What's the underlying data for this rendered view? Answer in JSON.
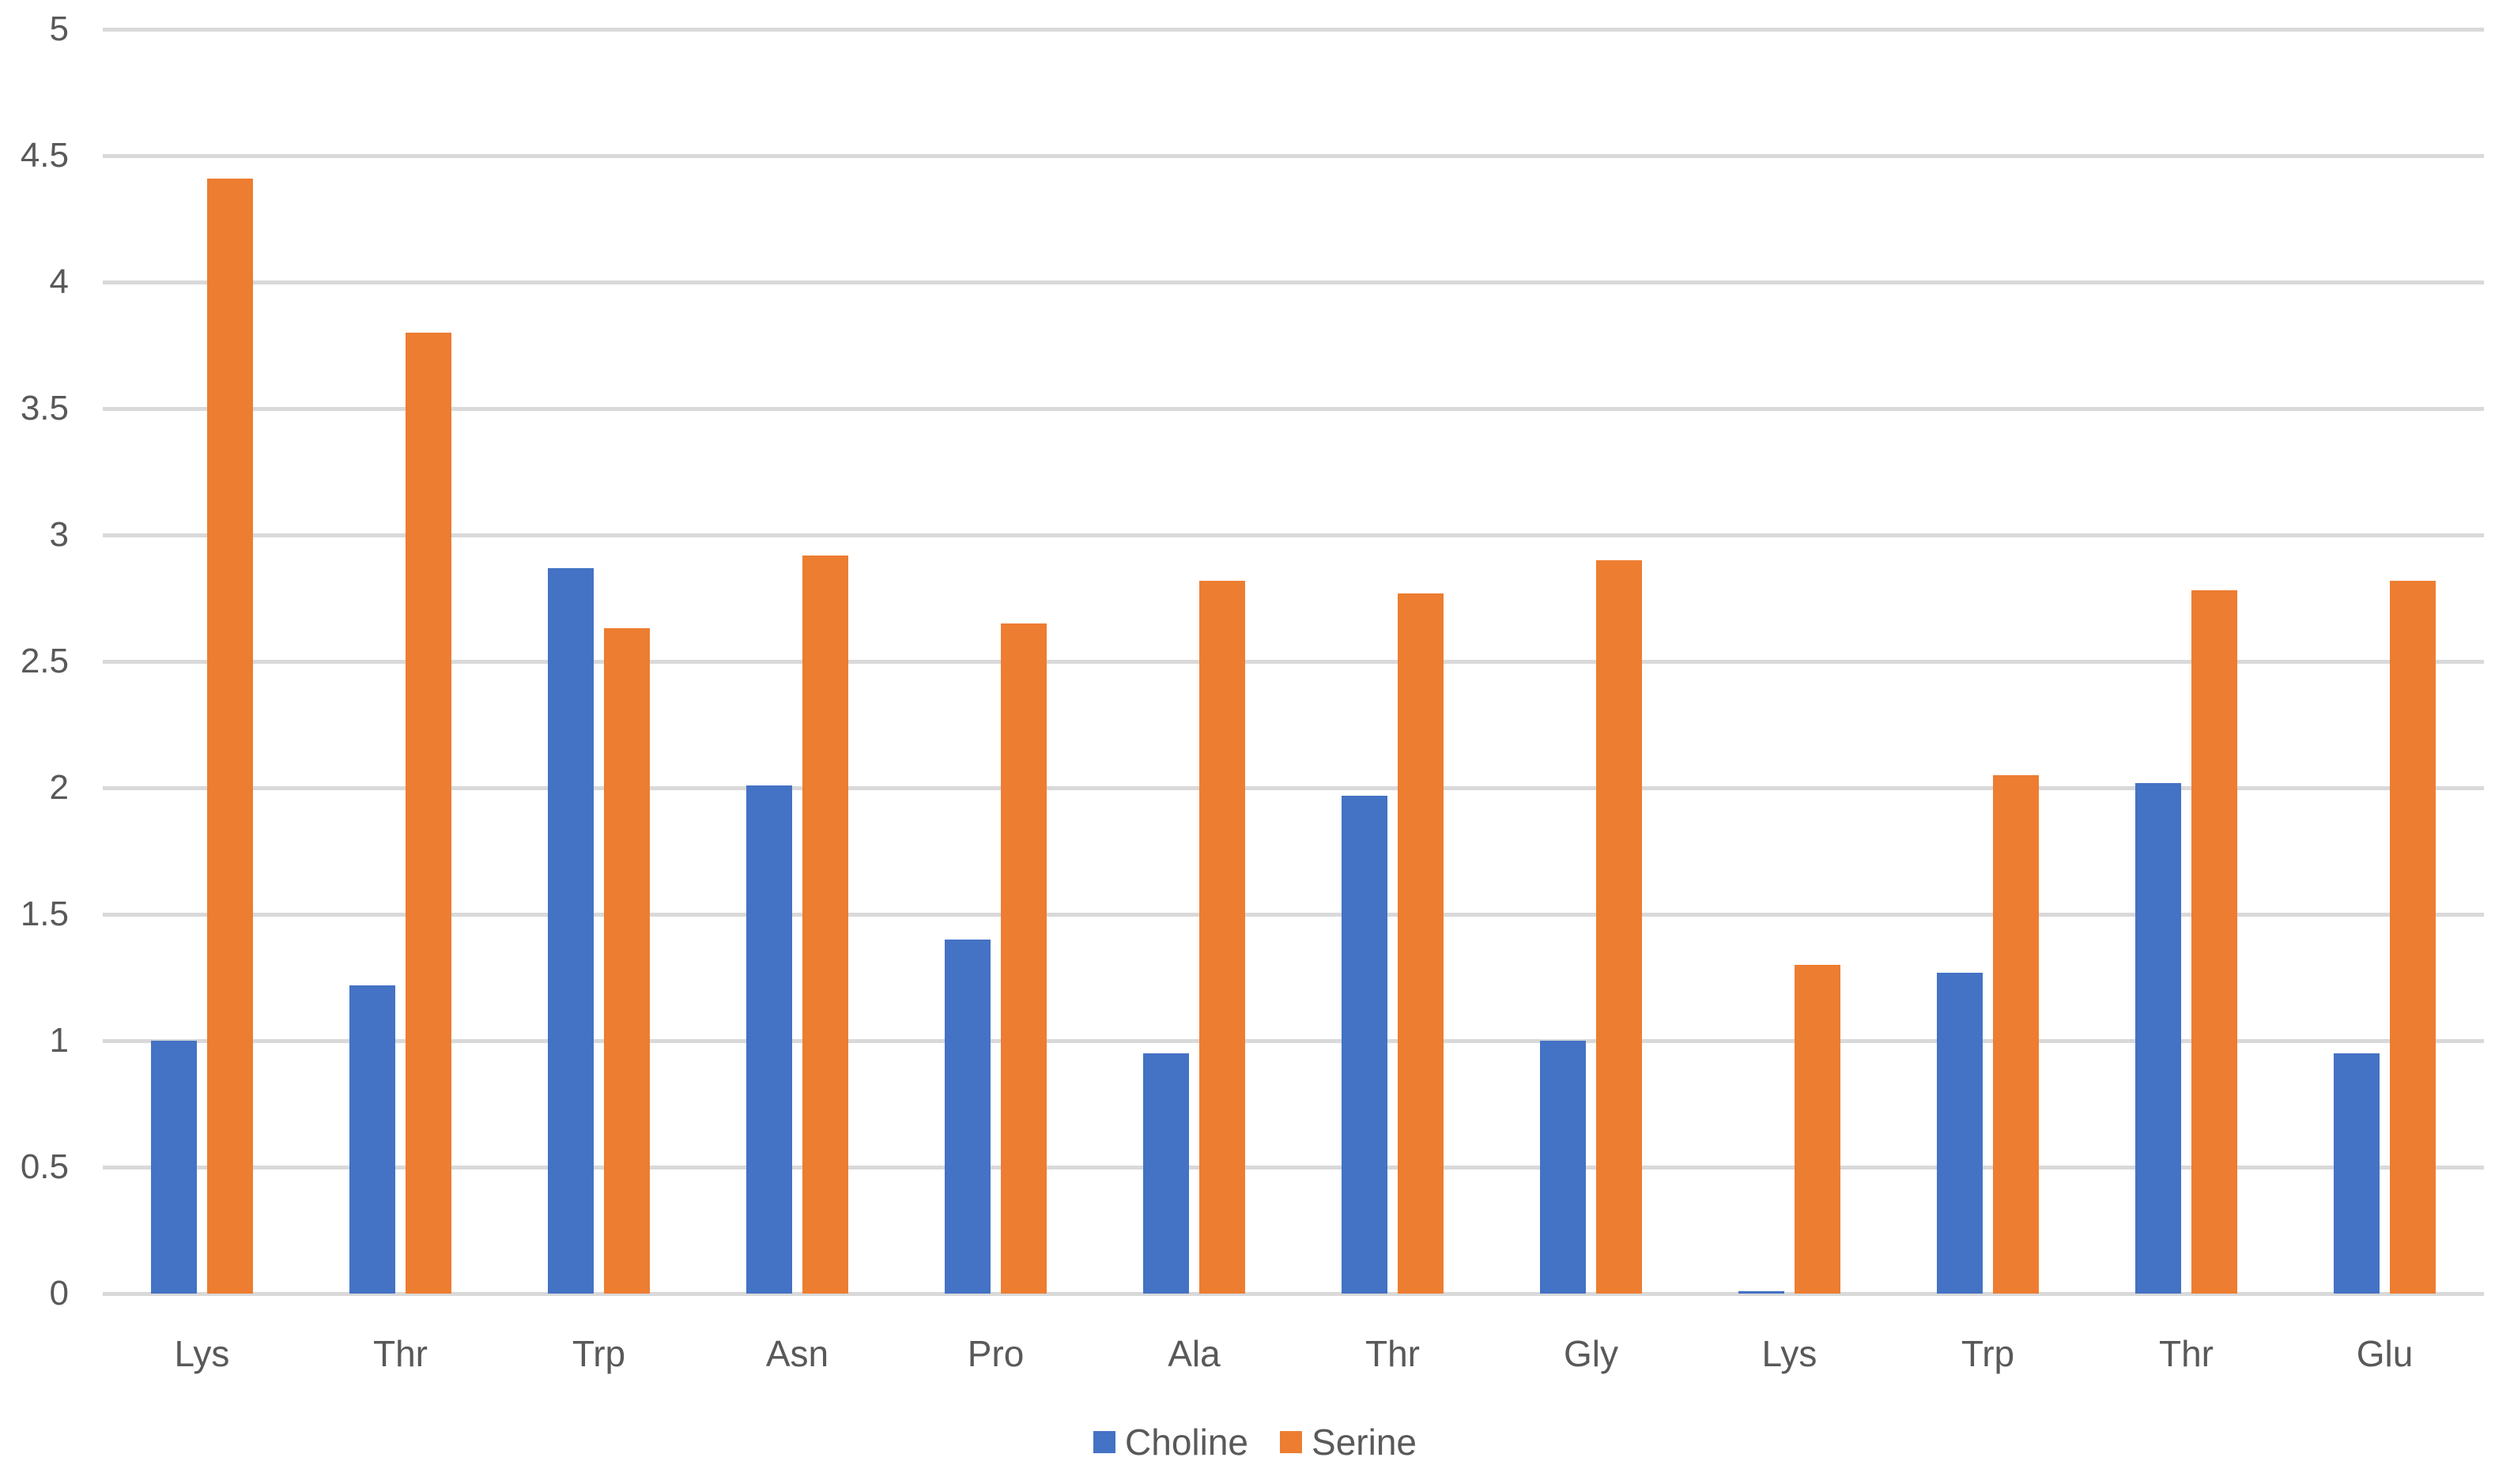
{
  "chart_data": {
    "type": "bar",
    "title": "",
    "xlabel": "",
    "ylabel": "",
    "categories": [
      "Lys",
      "Thr",
      "Trp",
      "Asn",
      "Pro",
      "Ala",
      "Thr",
      "Gly",
      "Lys",
      "Trp",
      "Thr",
      "Glu"
    ],
    "series": [
      {
        "name": "Choline",
        "color": "#4472C4",
        "values": [
          1.0,
          1.22,
          2.87,
          2.01,
          1.4,
          0.95,
          1.97,
          1.0,
          0.01,
          1.27,
          2.02,
          0.95
        ]
      },
      {
        "name": "Serine",
        "color": "#ED7D31",
        "values": [
          4.41,
          3.8,
          2.63,
          2.92,
          2.65,
          2.82,
          2.77,
          2.9,
          1.3,
          2.05,
          2.78,
          2.82
        ]
      }
    ],
    "ylim": [
      0,
      5
    ],
    "ytick_step": 0.5,
    "yticks": [
      "0",
      "0.5",
      "1",
      "1.5",
      "2",
      "2.5",
      "3",
      "3.5",
      "4",
      "4.5",
      "5"
    ],
    "grid": true,
    "legend_position": "bottom-center"
  },
  "colors": {
    "background": "#FFFFFF",
    "gridline": "#D9D9D9",
    "axis_text": "#595959",
    "choline_bar": "#4472C4",
    "serine_bar": "#ED7D31"
  }
}
